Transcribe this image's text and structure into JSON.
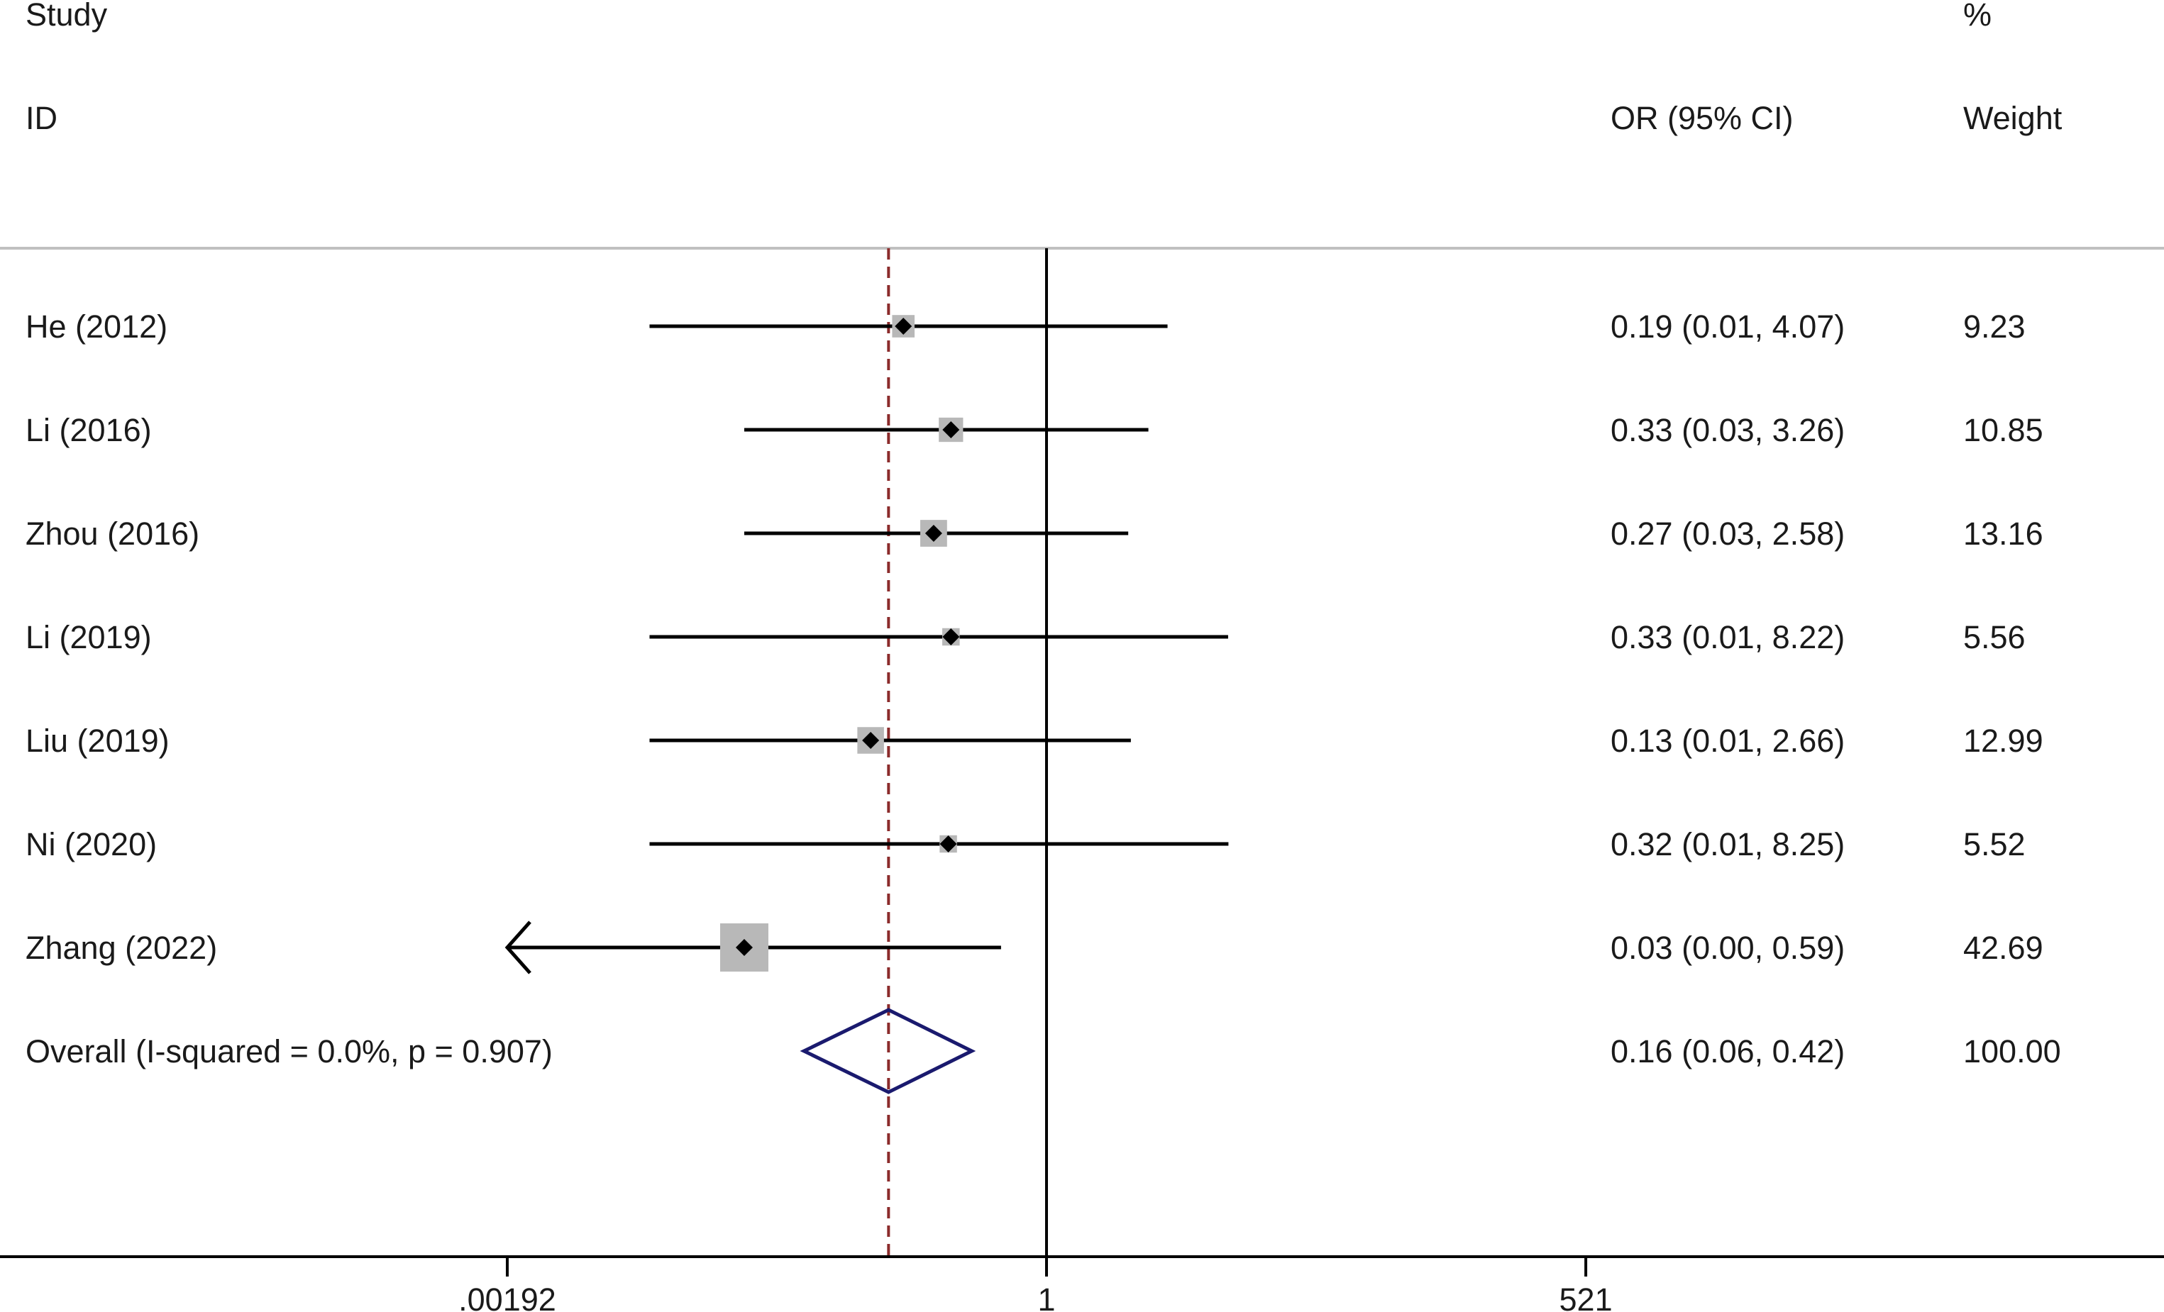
{
  "chart_data": {
    "type": "forest",
    "header": {
      "study_line1": "Study",
      "study_line2": "ID",
      "or_label": "OR (95% CI)",
      "weight_line1": "%",
      "weight_line2": "Weight"
    },
    "x_scale": "log",
    "x_ticks": [
      {
        "value": 0.00192,
        "label": ".00192"
      },
      {
        "value": 1,
        "label": "1"
      },
      {
        "value": 521,
        "label": "521"
      }
    ],
    "null_line": 1,
    "overall_line": 0.16,
    "studies": [
      {
        "id": "He (2012)",
        "or": 0.19,
        "lo": 0.01,
        "hi": 4.07,
        "or_text": "0.19 (0.01, 4.07)",
        "weight": 9.23,
        "weight_text": "9.23"
      },
      {
        "id": "Li (2016)",
        "or": 0.33,
        "lo": 0.03,
        "hi": 3.26,
        "or_text": "0.33 (0.03, 3.26)",
        "weight": 10.85,
        "weight_text": "10.85"
      },
      {
        "id": "Zhou (2016)",
        "or": 0.27,
        "lo": 0.03,
        "hi": 2.58,
        "or_text": "0.27 (0.03, 2.58)",
        "weight": 13.16,
        "weight_text": "13.16"
      },
      {
        "id": "Li (2019)",
        "or": 0.33,
        "lo": 0.01,
        "hi": 8.22,
        "or_text": "0.33 (0.01, 8.22)",
        "weight": 5.56,
        "weight_text": "5.56"
      },
      {
        "id": "Liu (2019)",
        "or": 0.13,
        "lo": 0.01,
        "hi": 2.66,
        "or_text": "0.13 (0.01, 2.66)",
        "weight": 12.99,
        "weight_text": "12.99"
      },
      {
        "id": "Ni (2020)",
        "or": 0.32,
        "lo": 0.01,
        "hi": 8.25,
        "or_text": "0.32 (0.01, 8.25)",
        "weight": 5.52,
        "weight_text": "5.52"
      },
      {
        "id": "Zhang (2022)",
        "or": 0.03,
        "lo": 0.0,
        "hi": 0.59,
        "or_text": "0.03 (0.00, 0.59)",
        "weight": 42.69,
        "weight_text": "42.69",
        "truncated_left": true
      }
    ],
    "overall": {
      "id": "Overall  (I-squared = 0.0%, p = 0.907)",
      "or": 0.16,
      "lo": 0.06,
      "hi": 0.42,
      "or_text": "0.16 (0.06, 0.42)",
      "weight_text": "100.00"
    },
    "colors": {
      "ci_line": "#000000",
      "weight_box": "#b8b8b8",
      "point": "#000000",
      "diamond": "#1a1a6e",
      "overall_line": "#8b2b2b",
      "null_line": "#000000",
      "separator": "#c0c0c0"
    }
  }
}
